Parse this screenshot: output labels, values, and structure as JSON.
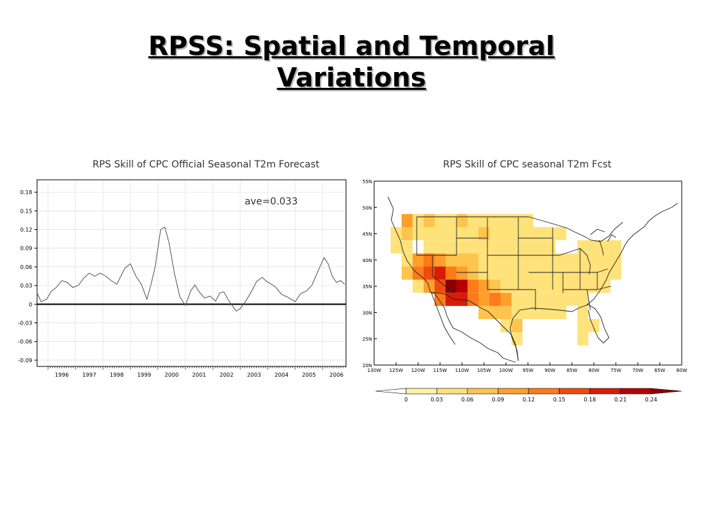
{
  "slide": {
    "title_line1": "RPSS: Spatial and Temporal",
    "title_line2": "Variations"
  },
  "colors": {
    "line": "#555555",
    "zero_line": "#000000",
    "grid": "#d8d8d8",
    "background": "#ffffff"
  },
  "chart_data": [
    {
      "type": "line",
      "title": "RPS Skill of CPC Official Seasonal T2m Forecast",
      "annotation": "ave=0.033",
      "xlabel": "",
      "ylabel": "",
      "xlim": [
        1995.6,
        2006.85
      ],
      "ylim": [
        -0.1,
        0.2
      ],
      "grid": true,
      "x_ticks": [
        "1996",
        "1997",
        "1998",
        "1999",
        "2000",
        "2001",
        "2002",
        "2003",
        "2004",
        "2005",
        "2006"
      ],
      "y_ticks": [
        "0.18",
        "0.15",
        "0.12",
        "0.09",
        "0.06",
        "0.03",
        "0",
        "-0.03",
        "-0.06",
        "-0.09"
      ],
      "series": [
        {
          "x": [
            1995.6,
            1995.75,
            1995.95,
            1996.1,
            1996.3,
            1996.5,
            1996.7,
            1996.9,
            1997.1,
            1997.3,
            1997.5,
            1997.7,
            1997.9,
            1998.1,
            1998.3,
            1998.5,
            1998.65,
            1998.8,
            1999.0,
            1999.2,
            1999.4,
            1999.6,
            1999.75,
            1999.9,
            2000.0,
            2000.1,
            2000.25,
            2000.4,
            2000.6,
            2000.8,
            2001.0,
            2001.2,
            2001.35,
            2001.5,
            2001.7,
            2001.9,
            2002.1,
            2002.25,
            2002.4,
            2002.55,
            2002.7,
            2002.85,
            2003.0,
            2003.2,
            2003.4,
            2003.6,
            2003.8,
            2003.95,
            2004.1,
            2004.3,
            2004.5,
            2004.7,
            2004.85,
            2005.0,
            2005.2,
            2005.4,
            2005.6,
            2005.75,
            2005.9,
            2006.05,
            2006.2,
            2006.35,
            2006.5,
            2006.65,
            2006.8
          ],
          "y": [
            0.018,
            0.004,
            0.008,
            0.02,
            0.027,
            0.038,
            0.035,
            0.027,
            0.03,
            0.042,
            0.05,
            0.045,
            0.05,
            0.045,
            0.038,
            0.032,
            0.045,
            0.058,
            0.065,
            0.045,
            0.032,
            0.008,
            0.032,
            0.06,
            0.09,
            0.12,
            0.124,
            0.1,
            0.05,
            0.012,
            -0.002,
            0.022,
            0.031,
            0.02,
            0.01,
            0.013,
            0.005,
            0.018,
            0.02,
            0.008,
            -0.002,
            -0.011,
            -0.007,
            0.005,
            0.02,
            0.037,
            0.043,
            0.037,
            0.033,
            0.027,
            0.016,
            0.012,
            0.008,
            0.004,
            0.017,
            0.021,
            0.03,
            0.045,
            0.06,
            0.075,
            0.065,
            0.045,
            0.035,
            0.038,
            0.032
          ]
        }
      ]
    },
    {
      "type": "heatmap",
      "title": "RPS Skill of CPC seasonal T2m Fcst",
      "lon_labels": [
        "130W",
        "125W",
        "120W",
        "115W",
        "110W",
        "105W",
        "100W",
        "95W",
        "90W",
        "85W",
        "80W",
        "75W",
        "70W",
        "65W",
        "60W"
      ],
      "lat_labels": [
        "55N",
        "50N",
        "45N",
        "40N",
        "35N",
        "30N",
        "25N",
        "20N"
      ],
      "xlim": [
        -130,
        -60
      ],
      "ylim": [
        20,
        55
      ],
      "grid_step_deg": 2.5,
      "colorbar": {
        "boundaries": [
          "0",
          "0.03",
          "0.06",
          "0.09",
          "0.12",
          "0.15",
          "0.18",
          "0.21",
          "0.24"
        ],
        "colors": [
          "#ffffff",
          "#fff3a8",
          "#ffe27a",
          "#ffc44e",
          "#ff9f2b",
          "#ff7a1a",
          "#f04b0e",
          "#d91d05",
          "#b80000",
          "#8a0000"
        ]
      },
      "cells": [
        {
          "lon": -122.5,
          "lat": 47.5,
          "v": 0.1
        },
        {
          "lon": -120,
          "lat": 47.5,
          "v": 0.05
        },
        {
          "lon": -117.5,
          "lat": 47.5,
          "v": 0.07
        },
        {
          "lon": -115,
          "lat": 47.5,
          "v": 0.04
        },
        {
          "lon": -112.5,
          "lat": 47.5,
          "v": 0.05
        },
        {
          "lon": -110,
          "lat": 47.5,
          "v": 0.06
        },
        {
          "lon": -107.5,
          "lat": 47.5,
          "v": 0.04
        },
        {
          "lon": -105,
          "lat": 47.5,
          "v": 0.05
        },
        {
          "lon": -102.5,
          "lat": 47.5,
          "v": 0.04
        },
        {
          "lon": -100,
          "lat": 47.5,
          "v": 0.04
        },
        {
          "lon": -97.5,
          "lat": 47.5,
          "v": 0.03
        },
        {
          "lon": -95,
          "lat": 47.5,
          "v": 0.03
        },
        {
          "lon": -125,
          "lat": 45,
          "v": 0.04
        },
        {
          "lon": -122.5,
          "lat": 45,
          "v": 0.06
        },
        {
          "lon": -120,
          "lat": 45,
          "v": 0.03
        },
        {
          "lon": -117.5,
          "lat": 45,
          "v": 0.05
        },
        {
          "lon": -115,
          "lat": 45,
          "v": 0.04
        },
        {
          "lon": -112.5,
          "lat": 45,
          "v": 0.03
        },
        {
          "lon": -110,
          "lat": 45,
          "v": 0.05
        },
        {
          "lon": -107.5,
          "lat": 45,
          "v": 0.03
        },
        {
          "lon": -105,
          "lat": 45,
          "v": 0.06
        },
        {
          "lon": -102.5,
          "lat": 45,
          "v": 0.03
        },
        {
          "lon": -100,
          "lat": 45,
          "v": 0.04
        },
        {
          "lon": -97.5,
          "lat": 45,
          "v": 0.03
        },
        {
          "lon": -95,
          "lat": 45,
          "v": 0.03
        },
        {
          "lon": -92.5,
          "lat": 45,
          "v": 0.03
        },
        {
          "lon": -90,
          "lat": 45,
          "v": 0.03
        },
        {
          "lon": -87.5,
          "lat": 45,
          "v": 0.03
        },
        {
          "lon": -125,
          "lat": 42.5,
          "v": 0.03
        },
        {
          "lon": -122.5,
          "lat": 42.5,
          "v": 0.05
        },
        {
          "lon": -120,
          "lat": 42.5,
          "v": 0.0
        },
        {
          "lon": -117.5,
          "lat": 42.5,
          "v": 0.04
        },
        {
          "lon": -115,
          "lat": 42.5,
          "v": 0.05
        },
        {
          "lon": -112.5,
          "lat": 42.5,
          "v": 0.04
        },
        {
          "lon": -110,
          "lat": 42.5,
          "v": 0.03
        },
        {
          "lon": -107.5,
          "lat": 42.5,
          "v": 0.05
        },
        {
          "lon": -105,
          "lat": 42.5,
          "v": 0.03
        },
        {
          "lon": -102.5,
          "lat": 42.5,
          "v": 0.04
        },
        {
          "lon": -100,
          "lat": 42.5,
          "v": 0.03
        },
        {
          "lon": -97.5,
          "lat": 42.5,
          "v": 0.03
        },
        {
          "lon": -95,
          "lat": 42.5,
          "v": 0.03
        },
        {
          "lon": -92.5,
          "lat": 42.5,
          "v": 0.03
        },
        {
          "lon": -90,
          "lat": 42.5,
          "v": 0.03
        },
        {
          "lon": -87.5,
          "lat": 42.5,
          "v": 0.0
        },
        {
          "lon": -85,
          "lat": 42.5,
          "v": 0.0
        },
        {
          "lon": -82.5,
          "lat": 42.5,
          "v": 0.03
        },
        {
          "lon": -80,
          "lat": 42.5,
          "v": 0.03
        },
        {
          "lon": -77.5,
          "lat": 42.5,
          "v": 0.03
        },
        {
          "lon": -75,
          "lat": 42.5,
          "v": 0.04
        },
        {
          "lon": -122.5,
          "lat": 40,
          "v": 0.05
        },
        {
          "lon": -120,
          "lat": 40,
          "v": 0.11
        },
        {
          "lon": -117.5,
          "lat": 40,
          "v": 0.13
        },
        {
          "lon": -115,
          "lat": 40,
          "v": 0.1
        },
        {
          "lon": -112.5,
          "lat": 40,
          "v": 0.08
        },
        {
          "lon": -110,
          "lat": 40,
          "v": 0.07
        },
        {
          "lon": -107.5,
          "lat": 40,
          "v": 0.06
        },
        {
          "lon": -105,
          "lat": 40,
          "v": 0.05
        },
        {
          "lon": -102.5,
          "lat": 40,
          "v": 0.04
        },
        {
          "lon": -100,
          "lat": 40,
          "v": 0.03
        },
        {
          "lon": -97.5,
          "lat": 40,
          "v": 0.03
        },
        {
          "lon": -95,
          "lat": 40,
          "v": 0.03
        },
        {
          "lon": -92.5,
          "lat": 40,
          "v": 0.03
        },
        {
          "lon": -90,
          "lat": 40,
          "v": 0.03
        },
        {
          "lon": -87.5,
          "lat": 40,
          "v": 0.03
        },
        {
          "lon": -85,
          "lat": 40,
          "v": 0.03
        },
        {
          "lon": -82.5,
          "lat": 40,
          "v": 0.03
        },
        {
          "lon": -80,
          "lat": 40,
          "v": 0.03
        },
        {
          "lon": -77.5,
          "lat": 40,
          "v": 0.04
        },
        {
          "lon": -75,
          "lat": 40,
          "v": 0.03
        },
        {
          "lon": -122.5,
          "lat": 37.5,
          "v": 0.08
        },
        {
          "lon": -120,
          "lat": 37.5,
          "v": 0.12
        },
        {
          "lon": -117.5,
          "lat": 37.5,
          "v": 0.16
        },
        {
          "lon": -115,
          "lat": 37.5,
          "v": 0.2
        },
        {
          "lon": -112.5,
          "lat": 37.5,
          "v": 0.14
        },
        {
          "lon": -110,
          "lat": 37.5,
          "v": 0.1
        },
        {
          "lon": -107.5,
          "lat": 37.5,
          "v": 0.07
        },
        {
          "lon": -105,
          "lat": 37.5,
          "v": 0.05
        },
        {
          "lon": -102.5,
          "lat": 37.5,
          "v": 0.04
        },
        {
          "lon": -100,
          "lat": 37.5,
          "v": 0.03
        },
        {
          "lon": -97.5,
          "lat": 37.5,
          "v": 0.03
        },
        {
          "lon": -95,
          "lat": 37.5,
          "v": 0.03
        },
        {
          "lon": -92.5,
          "lat": 37.5,
          "v": 0.03
        },
        {
          "lon": -90,
          "lat": 37.5,
          "v": 0.03
        },
        {
          "lon": -87.5,
          "lat": 37.5,
          "v": 0.03
        },
        {
          "lon": -85,
          "lat": 37.5,
          "v": 0.03
        },
        {
          "lon": -82.5,
          "lat": 37.5,
          "v": 0.03
        },
        {
          "lon": -80,
          "lat": 37.5,
          "v": 0.03
        },
        {
          "lon": -77.5,
          "lat": 37.5,
          "v": 0.04
        },
        {
          "lon": -75,
          "lat": 37.5,
          "v": 0.03
        },
        {
          "lon": -120,
          "lat": 35,
          "v": 0.05
        },
        {
          "lon": -117.5,
          "lat": 35,
          "v": 0.11
        },
        {
          "lon": -115,
          "lat": 35,
          "v": 0.17
        },
        {
          "lon": -112.5,
          "lat": 35,
          "v": 0.24
        },
        {
          "lon": -110,
          "lat": 35,
          "v": 0.23
        },
        {
          "lon": -107.5,
          "lat": 35,
          "v": 0.14
        },
        {
          "lon": -105,
          "lat": 35,
          "v": 0.1
        },
        {
          "lon": -102.5,
          "lat": 35,
          "v": 0.08
        },
        {
          "lon": -100,
          "lat": 35,
          "v": 0.05
        },
        {
          "lon": -97.5,
          "lat": 35,
          "v": 0.04
        },
        {
          "lon": -95,
          "lat": 35,
          "v": 0.03
        },
        {
          "lon": -92.5,
          "lat": 35,
          "v": 0.03
        },
        {
          "lon": -90,
          "lat": 35,
          "v": 0.03
        },
        {
          "lon": -87.5,
          "lat": 35,
          "v": 0.03
        },
        {
          "lon": -85,
          "lat": 35,
          "v": 0.03
        },
        {
          "lon": -82.5,
          "lat": 35,
          "v": 0.03
        },
        {
          "lon": -80,
          "lat": 35,
          "v": 0.04
        },
        {
          "lon": -77.5,
          "lat": 35,
          "v": 0.04
        },
        {
          "lon": -115,
          "lat": 32.5,
          "v": 0.14
        },
        {
          "lon": -112.5,
          "lat": 32.5,
          "v": 0.18
        },
        {
          "lon": -110,
          "lat": 32.5,
          "v": 0.19
        },
        {
          "lon": -107.5,
          "lat": 32.5,
          "v": 0.12
        },
        {
          "lon": -105,
          "lat": 32.5,
          "v": 0.1
        },
        {
          "lon": -102.5,
          "lat": 32.5,
          "v": 0.13
        },
        {
          "lon": -100,
          "lat": 32.5,
          "v": 0.09
        },
        {
          "lon": -97.5,
          "lat": 32.5,
          "v": 0.05
        },
        {
          "lon": -95,
          "lat": 32.5,
          "v": 0.03
        },
        {
          "lon": -92.5,
          "lat": 32.5,
          "v": 0.03
        },
        {
          "lon": -90,
          "lat": 32.5,
          "v": 0.03
        },
        {
          "lon": -87.5,
          "lat": 32.5,
          "v": 0.03
        },
        {
          "lon": -85,
          "lat": 32.5,
          "v": 0.03
        },
        {
          "lon": -82.5,
          "lat": 32.5,
          "v": 0.03
        },
        {
          "lon": -105,
          "lat": 30,
          "v": 0.07
        },
        {
          "lon": -102.5,
          "lat": 30,
          "v": 0.08
        },
        {
          "lon": -100,
          "lat": 30,
          "v": 0.06
        },
        {
          "lon": -97.5,
          "lat": 30,
          "v": 0.05
        },
        {
          "lon": -95,
          "lat": 30,
          "v": 0.03
        },
        {
          "lon": -92.5,
          "lat": 30,
          "v": 0.03
        },
        {
          "lon": -90,
          "lat": 30,
          "v": 0.03
        },
        {
          "lon": -87.5,
          "lat": 30,
          "v": 0.03
        },
        {
          "lon": -82.5,
          "lat": 30,
          "v": 0.03
        },
        {
          "lon": -100,
          "lat": 27.5,
          "v": 0.04
        },
        {
          "lon": -97.5,
          "lat": 27.5,
          "v": 0.08
        },
        {
          "lon": -82.5,
          "lat": 27.5,
          "v": 0.04
        },
        {
          "lon": -80,
          "lat": 27.5,
          "v": 0.03
        },
        {
          "lon": -97.5,
          "lat": 25,
          "v": 0.05
        },
        {
          "lon": -82.5,
          "lat": 25,
          "v": 0.03
        }
      ]
    }
  ]
}
